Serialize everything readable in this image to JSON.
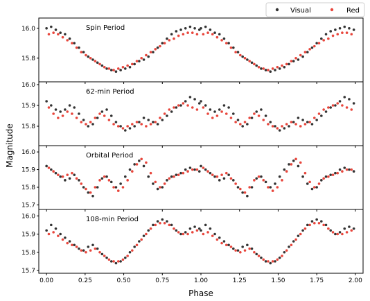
{
  "legend": {
    "position": "top-right",
    "entries": [
      {
        "label": "Visual",
        "color": "#333333"
      },
      {
        "label": "Red",
        "color": "#e8463c"
      }
    ]
  },
  "xlabel": "Phase",
  "ylabel": "Magnitude",
  "chart_data": [
    {
      "type": "scatter",
      "title": "Spin Period",
      "xlim": [
        -0.05,
        2.05
      ],
      "ylim": [
        15.66,
        16.05
      ],
      "yticks": [
        "15.8",
        "16.0"
      ],
      "series": [
        {
          "name": "Visual",
          "color": "#333333",
          "x": [
            0.0,
            0.03,
            0.06,
            0.09,
            0.12,
            0.15,
            0.18,
            0.21,
            0.24,
            0.27,
            0.3,
            0.33,
            0.36,
            0.39,
            0.42,
            0.45,
            0.48,
            0.51,
            0.54,
            0.57,
            0.6,
            0.63,
            0.66,
            0.69,
            0.72,
            0.75,
            0.78,
            0.81,
            0.84,
            0.87,
            0.9,
            0.93,
            0.96,
            0.99
          ],
          "y": [
            16.0,
            16.01,
            15.99,
            15.97,
            15.96,
            15.93,
            15.9,
            15.87,
            15.84,
            15.81,
            15.79,
            15.77,
            15.75,
            15.73,
            15.72,
            15.71,
            15.72,
            15.73,
            15.74,
            15.76,
            15.78,
            15.79,
            15.81,
            15.84,
            15.87,
            15.9,
            15.93,
            15.96,
            15.98,
            15.99,
            16.0,
            16.01,
            16.0,
            15.99
          ]
        },
        {
          "name": "Red",
          "color": "#e8463c",
          "x": [
            0.015,
            0.045,
            0.075,
            0.105,
            0.135,
            0.165,
            0.195,
            0.225,
            0.255,
            0.285,
            0.315,
            0.345,
            0.375,
            0.405,
            0.435,
            0.465,
            0.495,
            0.525,
            0.555,
            0.585,
            0.615,
            0.645,
            0.675,
            0.705,
            0.735,
            0.765,
            0.795,
            0.825,
            0.855,
            0.885,
            0.915,
            0.945,
            0.975
          ],
          "y": [
            15.96,
            15.97,
            15.96,
            15.94,
            15.92,
            15.9,
            15.87,
            15.84,
            15.82,
            15.8,
            15.78,
            15.76,
            15.74,
            15.73,
            15.72,
            15.73,
            15.74,
            15.75,
            15.76,
            15.78,
            15.8,
            15.82,
            15.84,
            15.86,
            15.88,
            15.9,
            15.92,
            15.93,
            15.95,
            15.96,
            15.97,
            15.97,
            15.96
          ]
        }
      ]
    },
    {
      "type": "scatter",
      "title": "62-min Period",
      "xlim": [
        -0.05,
        2.05
      ],
      "ylim": [
        15.72,
        16.0
      ],
      "yticks": [
        "15.8",
        "15.9",
        "16.0"
      ],
      "series": [
        {
          "name": "Visual",
          "color": "#333333",
          "x": [
            0.0,
            0.03,
            0.06,
            0.09,
            0.12,
            0.15,
            0.18,
            0.21,
            0.24,
            0.27,
            0.3,
            0.33,
            0.36,
            0.39,
            0.42,
            0.45,
            0.48,
            0.51,
            0.54,
            0.57,
            0.6,
            0.63,
            0.66,
            0.69,
            0.72,
            0.75,
            0.78,
            0.81,
            0.84,
            0.87,
            0.9,
            0.93,
            0.96,
            0.99
          ],
          "y": [
            15.92,
            15.9,
            15.88,
            15.87,
            15.88,
            15.9,
            15.89,
            15.86,
            15.83,
            15.8,
            15.81,
            15.84,
            15.87,
            15.88,
            15.85,
            15.82,
            15.8,
            15.78,
            15.79,
            15.8,
            15.82,
            15.84,
            15.83,
            15.82,
            15.81,
            15.83,
            15.85,
            15.87,
            15.89,
            15.9,
            15.92,
            15.94,
            15.93,
            15.91
          ]
        },
        {
          "name": "Red",
          "color": "#e8463c",
          "x": [
            0.015,
            0.045,
            0.075,
            0.105,
            0.135,
            0.165,
            0.195,
            0.225,
            0.255,
            0.285,
            0.315,
            0.345,
            0.375,
            0.405,
            0.435,
            0.465,
            0.495,
            0.525,
            0.555,
            0.585,
            0.615,
            0.645,
            0.675,
            0.705,
            0.735,
            0.765,
            0.795,
            0.825,
            0.855,
            0.885,
            0.915,
            0.945,
            0.975
          ],
          "y": [
            15.89,
            15.86,
            15.84,
            15.85,
            15.87,
            15.86,
            15.84,
            15.82,
            15.81,
            15.82,
            15.84,
            15.86,
            15.85,
            15.83,
            15.81,
            15.8,
            15.79,
            15.8,
            15.81,
            15.82,
            15.81,
            15.8,
            15.81,
            15.82,
            15.84,
            15.86,
            15.88,
            15.89,
            15.9,
            15.91,
            15.9,
            15.89,
            15.88
          ]
        }
      ]
    },
    {
      "type": "scatter",
      "title": "Orbital Period",
      "xlim": [
        -0.05,
        2.05
      ],
      "ylim": [
        15.69,
        16.02
      ],
      "yticks": [
        "15.7",
        "15.8",
        "15.9",
        "16.0"
      ],
      "series": [
        {
          "name": "Visual",
          "color": "#333333",
          "x": [
            0.0,
            0.03,
            0.06,
            0.09,
            0.12,
            0.15,
            0.18,
            0.21,
            0.24,
            0.27,
            0.3,
            0.33,
            0.36,
            0.39,
            0.42,
            0.45,
            0.48,
            0.51,
            0.54,
            0.57,
            0.6,
            0.63,
            0.66,
            0.69,
            0.72,
            0.75,
            0.78,
            0.81,
            0.84,
            0.87,
            0.9,
            0.93,
            0.96,
            0.99
          ],
          "y": [
            15.92,
            15.9,
            15.88,
            15.86,
            15.84,
            15.85,
            15.87,
            15.84,
            15.8,
            15.77,
            15.75,
            15.8,
            15.85,
            15.86,
            15.83,
            15.8,
            15.82,
            15.86,
            15.9,
            15.93,
            15.95,
            15.92,
            15.86,
            15.82,
            15.79,
            15.8,
            15.84,
            15.86,
            15.87,
            15.88,
            15.9,
            15.91,
            15.9,
            15.89
          ]
        },
        {
          "name": "Red",
          "color": "#e8463c",
          "x": [
            0.015,
            0.045,
            0.075,
            0.105,
            0.135,
            0.165,
            0.195,
            0.225,
            0.255,
            0.285,
            0.315,
            0.345,
            0.375,
            0.405,
            0.435,
            0.465,
            0.495,
            0.525,
            0.555,
            0.585,
            0.615,
            0.645,
            0.675,
            0.705,
            0.735,
            0.765,
            0.795,
            0.825,
            0.855,
            0.885,
            0.915,
            0.945,
            0.975
          ],
          "y": [
            15.91,
            15.89,
            15.87,
            15.86,
            15.87,
            15.88,
            15.85,
            15.82,
            15.79,
            15.77,
            15.8,
            15.84,
            15.86,
            15.84,
            15.8,
            15.78,
            15.8,
            15.84,
            15.89,
            15.93,
            15.96,
            15.94,
            15.88,
            15.83,
            15.8,
            15.82,
            15.85,
            15.86,
            15.87,
            15.88,
            15.89,
            15.9,
            15.9
          ]
        }
      ]
    },
    {
      "type": "scatter",
      "title": "108-min Period",
      "xlim": [
        -0.05,
        2.05
      ],
      "ylim": [
        15.7,
        16.02
      ],
      "yticks": [
        "15.7",
        "15.8",
        "15.9",
        "16.0"
      ],
      "series": [
        {
          "name": "Visual",
          "color": "#333333",
          "x": [
            0.0,
            0.03,
            0.06,
            0.09,
            0.12,
            0.15,
            0.18,
            0.21,
            0.24,
            0.27,
            0.3,
            0.33,
            0.36,
            0.39,
            0.42,
            0.45,
            0.48,
            0.51,
            0.54,
            0.57,
            0.6,
            0.63,
            0.66,
            0.69,
            0.72,
            0.75,
            0.78,
            0.81,
            0.84,
            0.87,
            0.9,
            0.93,
            0.96,
            0.99
          ],
          "y": [
            15.92,
            15.95,
            15.93,
            15.9,
            15.88,
            15.86,
            15.84,
            15.82,
            15.81,
            15.83,
            15.84,
            15.82,
            15.79,
            15.77,
            15.75,
            15.74,
            15.75,
            15.77,
            15.8,
            15.83,
            15.86,
            15.89,
            15.92,
            15.95,
            15.97,
            15.98,
            15.97,
            15.95,
            15.92,
            15.9,
            15.91,
            15.93,
            15.94,
            15.93
          ]
        },
        {
          "name": "Red",
          "color": "#e8463c",
          "x": [
            0.015,
            0.045,
            0.075,
            0.105,
            0.135,
            0.165,
            0.195,
            0.225,
            0.255,
            0.285,
            0.315,
            0.345,
            0.375,
            0.405,
            0.435,
            0.465,
            0.495,
            0.525,
            0.555,
            0.585,
            0.615,
            0.645,
            0.675,
            0.705,
            0.735,
            0.765,
            0.795,
            0.825,
            0.855,
            0.885,
            0.915,
            0.945,
            0.975
          ],
          "y": [
            15.9,
            15.91,
            15.89,
            15.87,
            15.85,
            15.84,
            15.83,
            15.81,
            15.8,
            15.81,
            15.82,
            15.8,
            15.78,
            15.76,
            15.75,
            15.75,
            15.76,
            15.78,
            15.81,
            15.84,
            15.87,
            15.9,
            15.93,
            15.95,
            15.96,
            15.96,
            15.95,
            15.93,
            15.91,
            15.9,
            15.9,
            15.91,
            15.92
          ]
        }
      ]
    }
  ],
  "xticks": [
    "0.00",
    "0.25",
    "0.50",
    "0.75",
    "1.00",
    "1.25",
    "1.50",
    "1.75",
    "2.00"
  ],
  "xtick_values": [
    0.0,
    0.25,
    0.5,
    0.75,
    1.0,
    1.25,
    1.5,
    1.75,
    2.0
  ]
}
